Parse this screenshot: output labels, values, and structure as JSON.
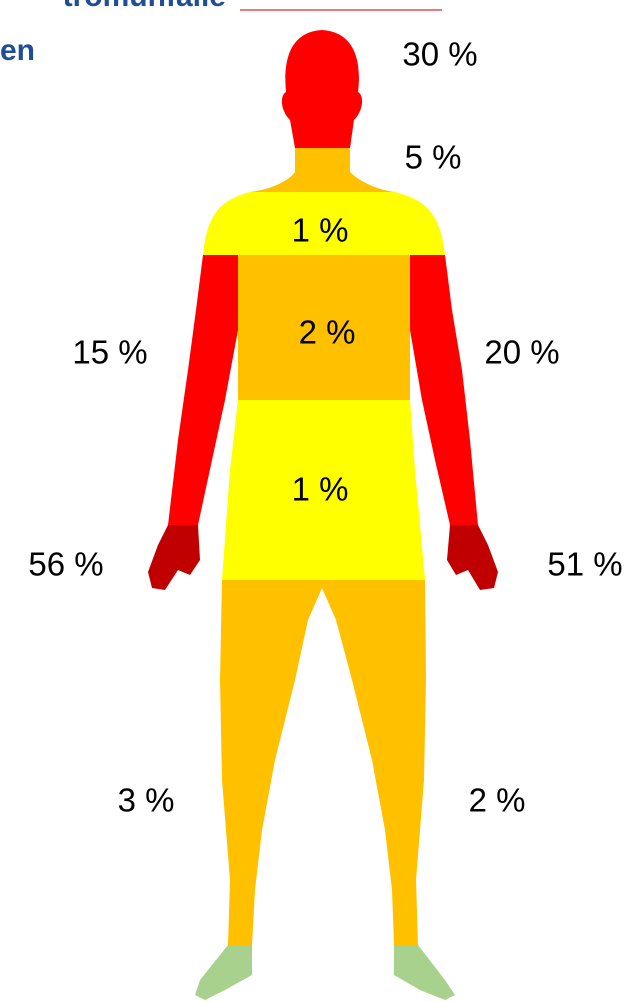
{
  "header": {
    "line1": "tromunfalle",
    "line2": "en"
  },
  "labels": {
    "head": "30 %",
    "neck": "5 %",
    "shoulders": "1 %",
    "chest": "2 %",
    "abdomen": "1 %",
    "right_arm": "15 %",
    "left_arm": "20 %",
    "right_hand": "56 %",
    "left_hand": "51 %",
    "right_leg": "3 %",
    "left_leg": "2 %"
  }
}
